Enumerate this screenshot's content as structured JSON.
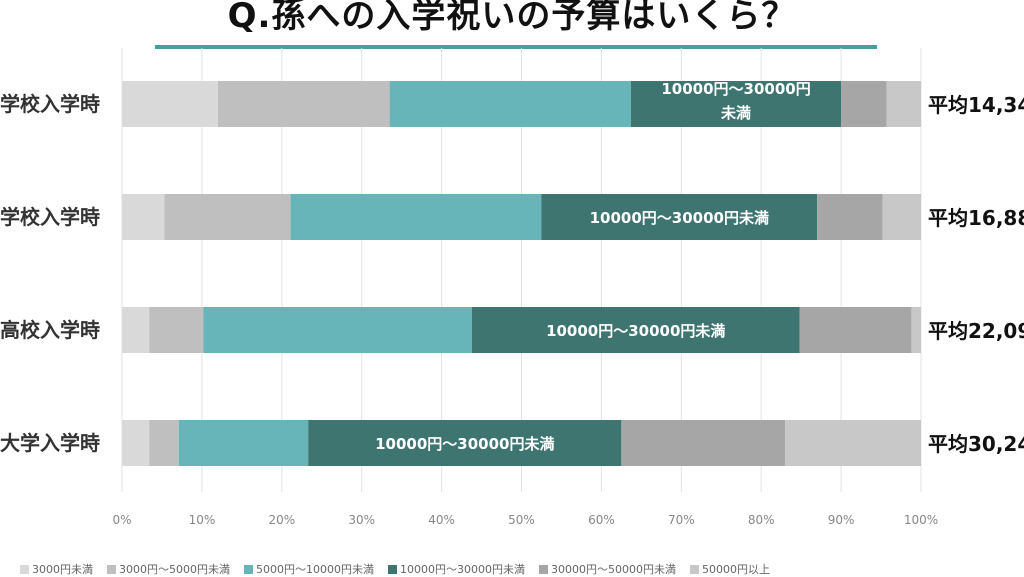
{
  "title": "Q.孫への入学祝いの予算はいくら？",
  "colors": {
    "title_underline": "#4a9da2",
    "grid": "#e3e3e3",
    "segment_label_text": "#ffffff"
  },
  "chart_data": {
    "type": "bar",
    "orientation": "horizontal",
    "stacked": "percent",
    "categories": [
      "学校入学時",
      "学校入学時",
      "高校入学時",
      "大学入学時"
    ],
    "xlim": [
      0,
      100
    ],
    "x_ticks": [
      "0%",
      "10%",
      "20%",
      "30%",
      "40%",
      "50%",
      "60%",
      "70%",
      "80%",
      "90%",
      "100%"
    ],
    "grid": true,
    "legend_position": "bottom",
    "series": [
      {
        "name": "3000円未満",
        "color": "#d9d9d9",
        "values": [
          12.0,
          5.3,
          3.4,
          3.4
        ]
      },
      {
        "name": "3000円～5000円未満",
        "color": "#bfbfbf",
        "values": [
          21.5,
          15.8,
          6.8,
          3.7
        ]
      },
      {
        "name": "5000円～10000円未満",
        "color": "#67b5b8",
        "values": [
          30.2,
          31.4,
          33.6,
          16.2
        ]
      },
      {
        "name": "10000円～30000円未満",
        "color": "#3f7571",
        "values": [
          26.3,
          34.5,
          41.0,
          39.2
        ]
      },
      {
        "name": "30000円～50000円未満",
        "color": "#a6a6a6",
        "values": [
          5.7,
          8.2,
          14.0,
          20.5
        ]
      },
      {
        "name": "50000円以上",
        "color": "#c8c8c8",
        "values": [
          4.3,
          4.8,
          1.2,
          17.0
        ]
      }
    ],
    "segment_labels": [
      [
        "10000円～30000円",
        "未満"
      ],
      [
        "10000円～30000円未満"
      ],
      [
        "10000円～30000円未満"
      ],
      [
        "10000円～30000円未満"
      ]
    ],
    "averages": [
      "平均14,34",
      "平均16,88",
      "平均22,09",
      "平均30,24"
    ]
  }
}
